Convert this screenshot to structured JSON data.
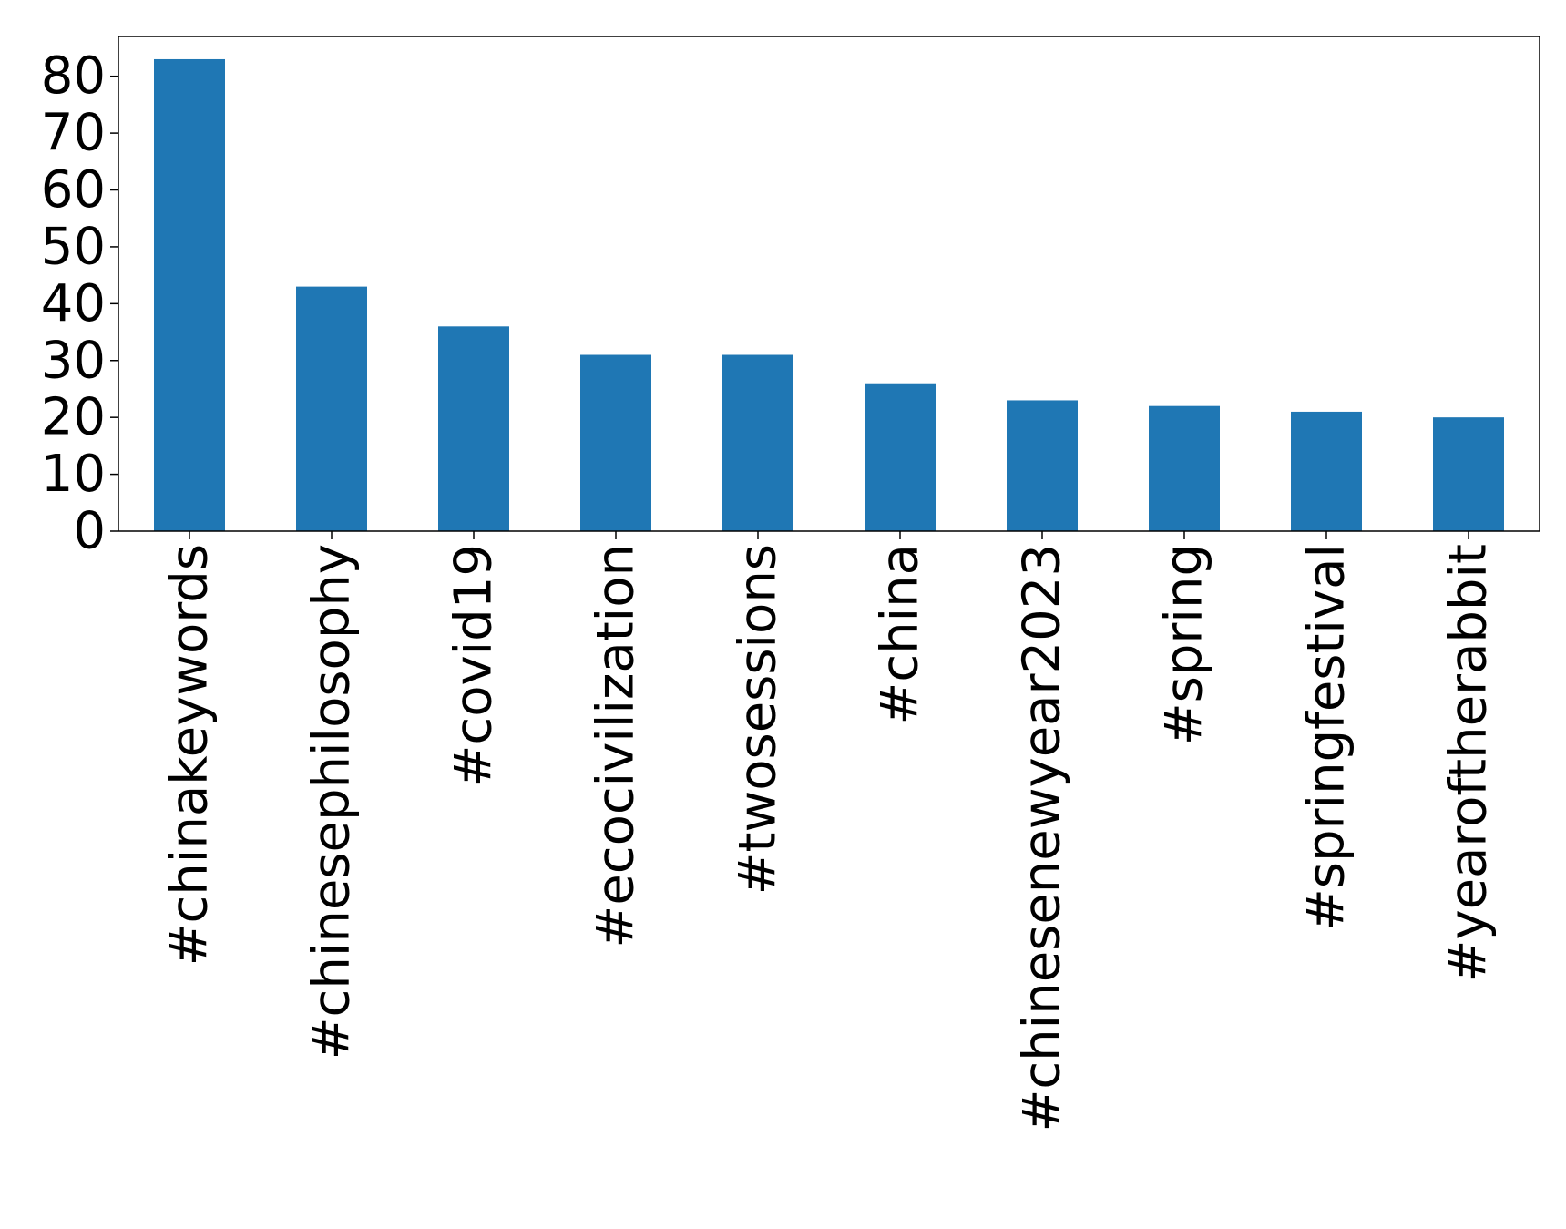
{
  "chart_data": {
    "type": "bar",
    "title": "",
    "xlabel": "",
    "ylabel": "",
    "categories": [
      "#chinakeywords",
      "#chinesephilosophy",
      "#covid19",
      "#ecocivilization",
      "#twosessions",
      "#china",
      "#chinesenewyear2023",
      "#spring",
      "#springfestival",
      "#yearoftherabbit"
    ],
    "values": [
      83,
      43,
      36,
      31,
      31,
      26,
      23,
      22,
      21,
      20
    ],
    "ylim": [
      0,
      87
    ],
    "yticks": [
      0,
      10,
      20,
      30,
      40,
      50,
      60,
      70,
      80
    ],
    "grid": false,
    "legend": "none",
    "bar_color": "#1f77b4"
  }
}
